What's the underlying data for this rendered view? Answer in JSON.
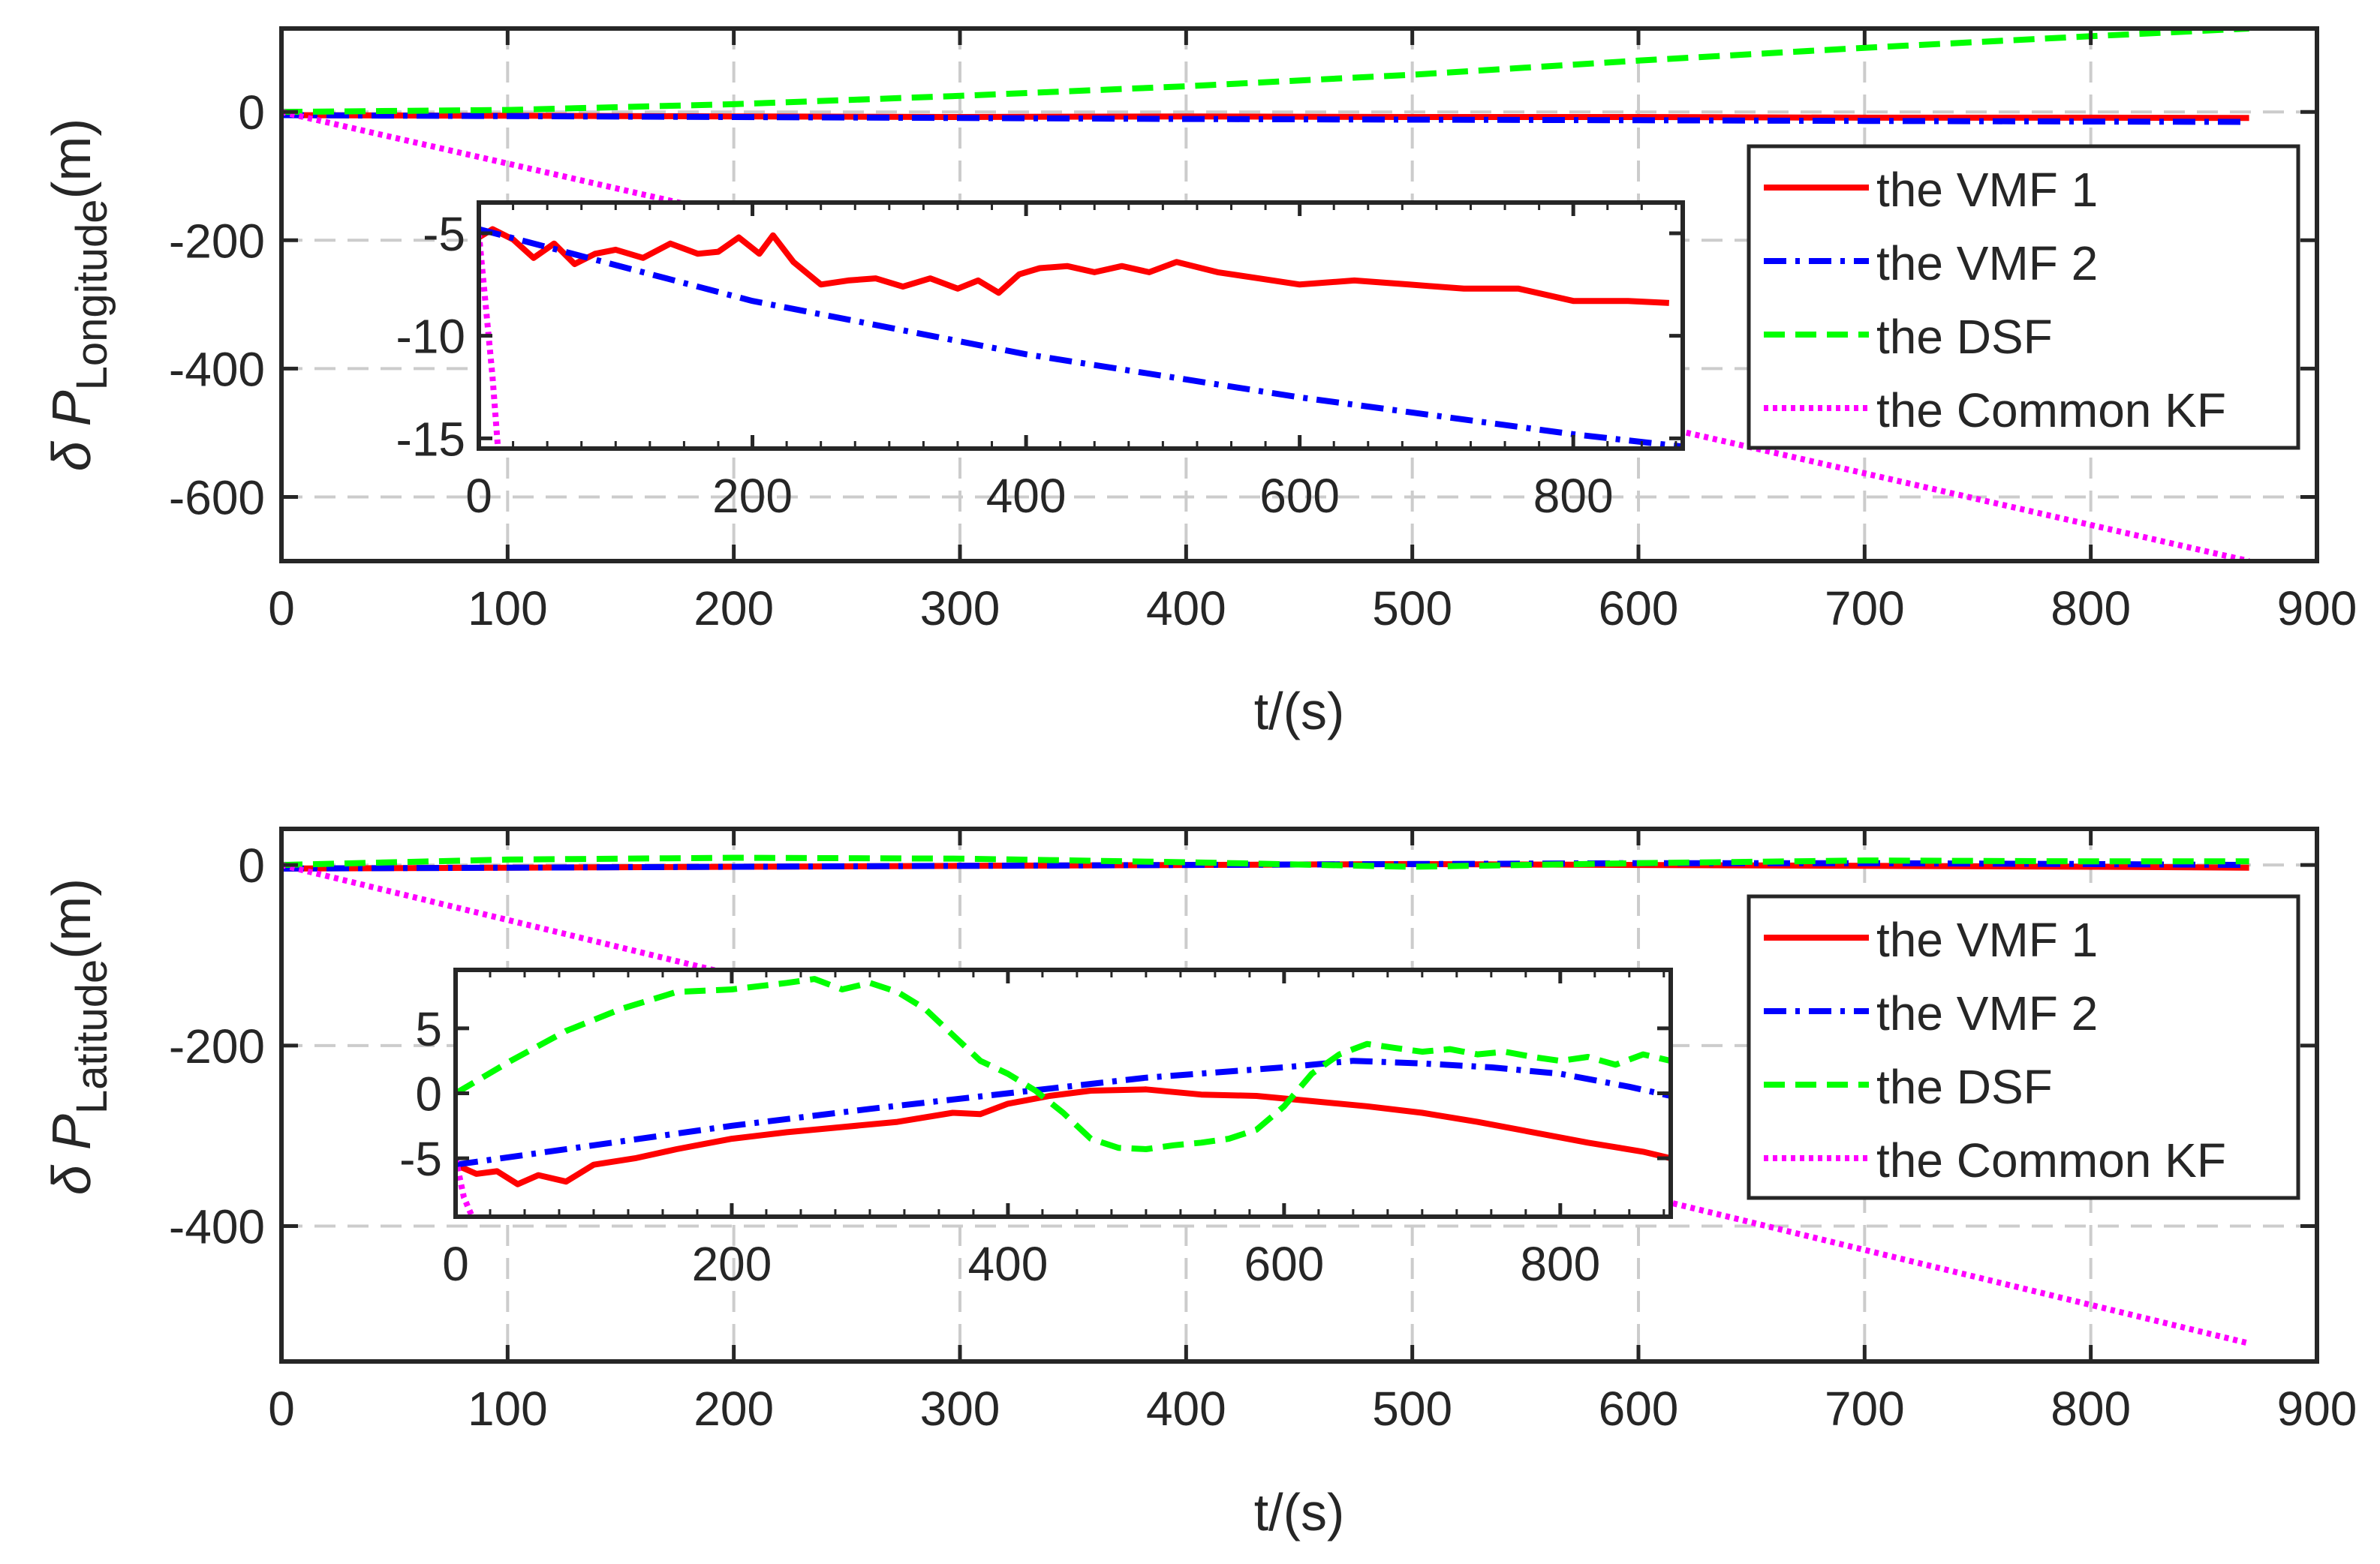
{
  "colors": {
    "vmf1": "#ff0000",
    "vmf2": "#0000ff",
    "dsf": "#00ff00",
    "kf": "#ff00ff",
    "axis": "#262626",
    "grid": "#cccccc"
  },
  "chart_data": [
    {
      "type": "line",
      "panel": "longitude",
      "ylabel_prefix": "δ P",
      "ylabel_sub": "Longitude",
      "ylabel_suffix": "(m)",
      "xlabel": "t/(s)",
      "xlim": [
        0,
        900
      ],
      "ylim": [
        -700,
        130
      ],
      "xticks": [
        0,
        100,
        200,
        300,
        400,
        500,
        600,
        700,
        800,
        900
      ],
      "xtick_labels": [
        "0",
        "100",
        "200",
        "300",
        "400",
        "500",
        "600",
        "700",
        "800",
        "900"
      ],
      "yticks": [
        -600,
        -400,
        -200,
        0
      ],
      "ytick_labels": [
        "-600",
        "-400",
        "-200",
        "0"
      ],
      "legend": [
        "the VMF 1",
        "the VMF 2",
        "the DSF",
        "the Common KF"
      ],
      "series": [
        {
          "name": "the VMF 1",
          "key": "vmf1",
          "dash": "solid",
          "x": [
            0,
            100,
            200,
            300,
            400,
            500,
            600,
            700,
            800,
            870
          ],
          "y": [
            -5,
            -6,
            -7,
            -8,
            -7,
            -8,
            -8,
            -9,
            -9,
            -9.5
          ]
        },
        {
          "name": "the VMF 2",
          "key": "vmf2",
          "dash": "dashdot",
          "x": [
            0,
            100,
            200,
            300,
            400,
            500,
            600,
            700,
            800,
            870
          ],
          "y": [
            -5,
            -6.5,
            -8,
            -9.5,
            -11,
            -12,
            -13,
            -14,
            -15,
            -15.5
          ]
        },
        {
          "name": "the DSF",
          "key": "dsf",
          "dash": "dashed",
          "x": [
            0,
            100,
            200,
            300,
            400,
            500,
            600,
            700,
            800,
            870
          ],
          "y": [
            0,
            3,
            12,
            25,
            40,
            58,
            80,
            100,
            118,
            130
          ]
        },
        {
          "name": "the Common KF",
          "key": "kf",
          "dash": "dotted",
          "x": [
            0,
            870
          ],
          "y": [
            0,
            -700
          ]
        }
      ],
      "inset": {
        "xlim": [
          0,
          880
        ],
        "ylim": [
          -15.5,
          -3.5
        ],
        "xticks": [
          0,
          200,
          400,
          600,
          800
        ],
        "xtick_labels": [
          "0",
          "200",
          "400",
          "600",
          "800"
        ],
        "yticks": [
          -15,
          -10,
          -5
        ],
        "ytick_labels": [
          "-15",
          "-10",
          "-5"
        ],
        "series": [
          {
            "key": "vmf1",
            "dash": "solid",
            "x": [
              0,
              10,
              25,
              40,
              55,
              70,
              85,
              100,
              120,
              140,
              160,
              175,
              190,
              205,
              215,
              230,
              250,
              270,
              290,
              310,
              330,
              350,
              365,
              380,
              395,
              410,
              430,
              450,
              470,
              490,
              510,
              540,
              570,
              600,
              640,
              680,
              720,
              760,
              800,
              840,
              870
            ],
            "y": [
              -5.2,
              -4.8,
              -5.3,
              -6.2,
              -5.5,
              -6.5,
              -6.0,
              -5.8,
              -6.2,
              -5.5,
              -6.0,
              -5.9,
              -5.2,
              -6.0,
              -5.1,
              -6.4,
              -7.5,
              -7.3,
              -7.2,
              -7.6,
              -7.2,
              -7.7,
              -7.3,
              -7.9,
              -7.0,
              -6.7,
              -6.6,
              -6.9,
              -6.6,
              -6.9,
              -6.4,
              -6.9,
              -7.2,
              -7.5,
              -7.3,
              -7.5,
              -7.7,
              -7.7,
              -8.3,
              -8.3,
              -8.4
            ]
          },
          {
            "key": "vmf2",
            "dash": "dashdot",
            "x": [
              0,
              200,
              400,
              600,
              800,
              880
            ],
            "y": [
              -4.8,
              -8.3,
              -10.9,
              -13.0,
              -14.8,
              -15.4
            ]
          },
          {
            "key": "kf",
            "dash": "dotted",
            "x": [
              0,
              10,
              14
            ],
            "y": [
              -5,
              -12,
              -15.5
            ]
          }
        ]
      }
    },
    {
      "type": "line",
      "panel": "latitude",
      "ylabel_prefix": "δ P",
      "ylabel_sub": "Latitude",
      "ylabel_suffix": "(m)",
      "xlabel": "t/(s)",
      "xlim": [
        0,
        900
      ],
      "ylim": [
        -550,
        40
      ],
      "xticks": [
        0,
        100,
        200,
        300,
        400,
        500,
        600,
        700,
        800,
        900
      ],
      "xtick_labels": [
        "0",
        "100",
        "200",
        "300",
        "400",
        "500",
        "600",
        "700",
        "800",
        "900"
      ],
      "yticks": [
        -400,
        -200,
        0
      ],
      "ytick_labels": [
        "-400",
        "-200",
        "0"
      ],
      "legend": [
        "the VMF 1",
        "the VMF 2",
        "the DSF",
        "the Common KF"
      ],
      "series": [
        {
          "name": "the VMF 1",
          "key": "vmf1",
          "dash": "solid",
          "x": [
            0,
            100,
            200,
            300,
            400,
            500,
            600,
            700,
            800,
            870
          ],
          "y": [
            -4,
            -3,
            -2,
            -1,
            0,
            1,
            0,
            -1,
            -2,
            -3
          ]
        },
        {
          "name": "the VMF 2",
          "key": "vmf2",
          "dash": "dashdot",
          "x": [
            0,
            100,
            200,
            300,
            400,
            500,
            600,
            700,
            800,
            870
          ],
          "y": [
            -4,
            -3,
            -2,
            -1,
            0,
            1,
            2,
            2,
            1,
            0
          ]
        },
        {
          "name": "the DSF",
          "key": "dsf",
          "dash": "dashed",
          "x": [
            0,
            100,
            200,
            300,
            400,
            500,
            600,
            700,
            800,
            870
          ],
          "y": [
            0,
            6,
            8,
            7,
            3,
            -2,
            2,
            5,
            4,
            4
          ]
        },
        {
          "name": "the Common KF",
          "key": "kf",
          "dash": "dotted",
          "x": [
            0,
            870
          ],
          "y": [
            0,
            -530
          ]
        }
      ],
      "inset": {
        "xlim": [
          0,
          880
        ],
        "ylim": [
          -9.5,
          9.5
        ],
        "xticks": [
          0,
          200,
          400,
          600,
          800
        ],
        "xtick_labels": [
          "0",
          "200",
          "400",
          "600",
          "800"
        ],
        "yticks": [
          -5,
          0,
          5
        ],
        "ytick_labels": [
          "-5",
          "0",
          "5"
        ],
        "series": [
          {
            "key": "vmf1",
            "dash": "solid",
            "x": [
              0,
              15,
              30,
              45,
              60,
              80,
              100,
              130,
              160,
              200,
              240,
              280,
              320,
              360,
              380,
              400,
              430,
              460,
              500,
              540,
              580,
              620,
              660,
              700,
              740,
              780,
              820,
              860,
              880
            ],
            "y": [
              -5.5,
              -6.2,
              -6.0,
              -7.0,
              -6.3,
              -6.8,
              -5.5,
              -5.0,
              -4.3,
              -3.5,
              -3.0,
              -2.6,
              -2.2,
              -1.5,
              -1.6,
              -0.8,
              -0.2,
              0.2,
              0.3,
              -0.1,
              -0.2,
              -0.6,
              -1.0,
              -1.5,
              -2.2,
              -3.0,
              -3.8,
              -4.5,
              -5.0
            ]
          },
          {
            "key": "vmf2",
            "dash": "dashdot",
            "x": [
              0,
              100,
              200,
              300,
              400,
              500,
              600,
              650,
              700,
              750,
              800,
              850,
              880
            ],
            "y": [
              -5.5,
              -4.0,
              -2.5,
              -1.2,
              0.0,
              1.2,
              2.0,
              2.5,
              2.3,
              2.0,
              1.5,
              0.5,
              -0.2
            ]
          },
          {
            "key": "dsf",
            "dash": "dashed",
            "x": [
              0,
              40,
              80,
              120,
              160,
              200,
              240,
              260,
              280,
              300,
              320,
              340,
              360,
              380,
              400,
              420,
              440,
              460,
              480,
              500,
              520,
              540,
              560,
              580,
              600,
              620,
              640,
              660,
              680,
              700,
              720,
              740,
              760,
              780,
              800,
              820,
              840,
              860,
              880
            ],
            "y": [
              0.0,
              2.5,
              4.8,
              6.5,
              7.8,
              8.0,
              8.5,
              8.8,
              8.0,
              8.5,
              7.8,
              6.5,
              4.5,
              2.5,
              1.5,
              0.2,
              -1.5,
              -3.5,
              -4.2,
              -4.3,
              -4.0,
              -3.8,
              -3.5,
              -2.8,
              -1.0,
              1.5,
              3.0,
              3.8,
              3.5,
              3.2,
              3.4,
              3.0,
              3.2,
              2.8,
              2.5,
              2.8,
              2.2,
              3.0,
              2.5
            ]
          },
          {
            "key": "kf",
            "dash": "dotted",
            "x": [
              0,
              6,
              12
            ],
            "y": [
              -5,
              -8,
              -9.5
            ]
          }
        ]
      }
    }
  ]
}
